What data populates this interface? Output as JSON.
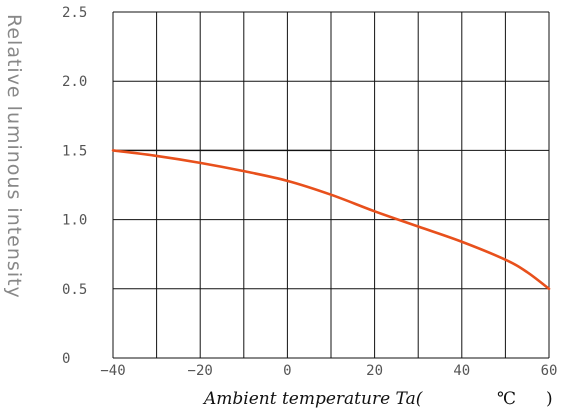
{
  "chart_data": {
    "type": "line",
    "xlabel": "Ambient temperature Ta(",
    "xunit": "℃",
    "xunit_close": ")",
    "ylabel": "Relative luminous intensity",
    "xlim": [
      -40,
      60
    ],
    "ylim": [
      0,
      2.5
    ],
    "x_ticks": [
      -40,
      -20,
      0,
      20,
      40,
      60
    ],
    "x_tick_labels": [
      "−40",
      "−20",
      "0",
      "20",
      "40",
      "60"
    ],
    "y_ticks": [
      0,
      0.5,
      1.0,
      1.5,
      2.0,
      2.5
    ],
    "y_tick_labels": [
      "0",
      "0.5",
      "1.0",
      "1.5",
      "2.0",
      "2.5"
    ],
    "grid": true,
    "reference_line": {
      "y": 1.5,
      "x_start": -40,
      "x_end": 10
    },
    "series": [
      {
        "color": "#e8501c",
        "x": [
          -40,
          -30,
          -20,
          -10,
          0,
          10,
          20,
          30,
          40,
          50,
          55,
          60
        ],
        "y": [
          1.5,
          1.46,
          1.41,
          1.35,
          1.28,
          1.18,
          1.06,
          0.95,
          0.84,
          0.71,
          0.62,
          0.5
        ]
      }
    ]
  }
}
